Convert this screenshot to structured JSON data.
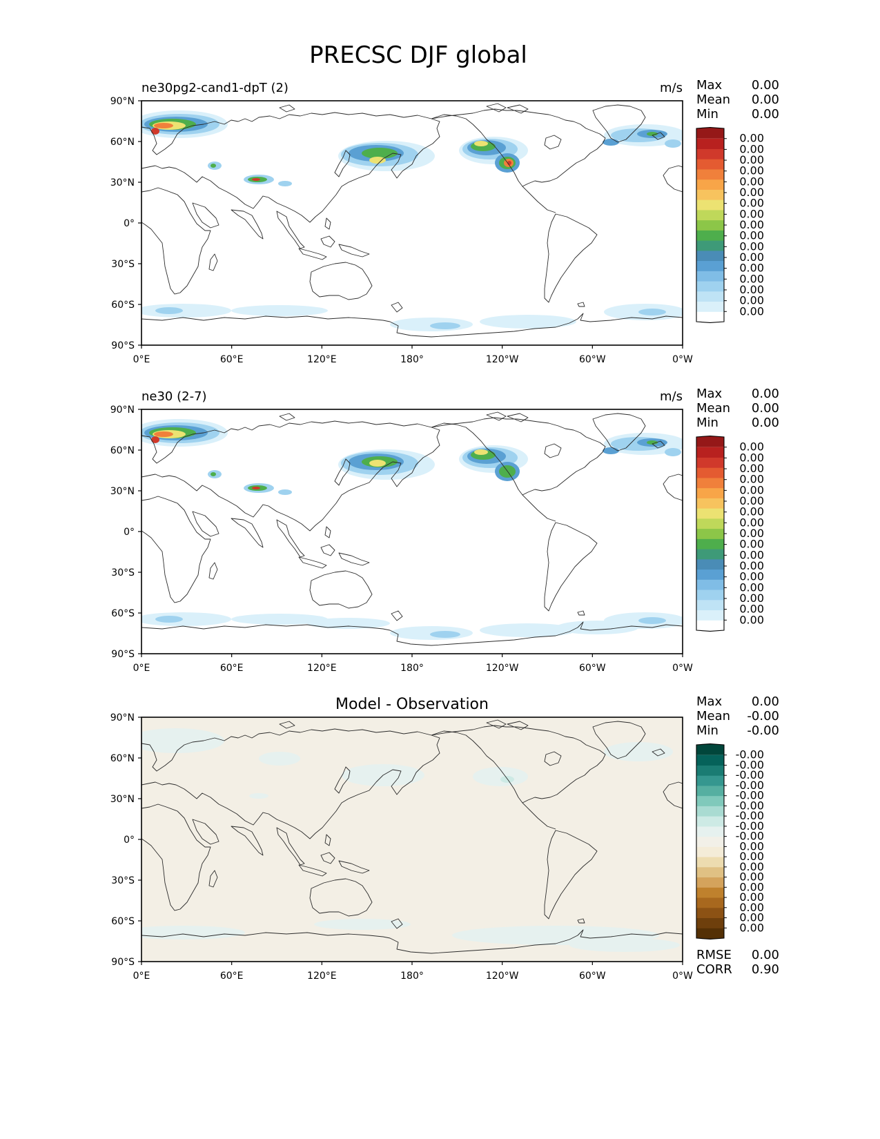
{
  "figure": {
    "title": "PRECSC DJF global"
  },
  "axes": {
    "x_ticks": [
      "0°E",
      "60°E",
      "120°E",
      "180°",
      "120°W",
      "60°W",
      "0°W"
    ],
    "y_ticks": [
      "90°N",
      "60°N",
      "30°N",
      "0°",
      "30°S",
      "60°S",
      "90°S"
    ]
  },
  "panels": [
    {
      "left_title": "ne30pg2-cand1-dpT (2)",
      "center_title": "",
      "units": "m/s",
      "stats": [
        {
          "label": "Max",
          "value": "0.00"
        },
        {
          "label": "Mean",
          "value": "0.00"
        },
        {
          "label": "Min",
          "value": "0.00"
        }
      ],
      "colorbar": {
        "colors": [
          "#ffffff",
          "#daf0fa",
          "#bfe3f5",
          "#9fd2ef",
          "#80bde6",
          "#5aa0d3",
          "#4a8cb6",
          "#3e9a78",
          "#4eae4c",
          "#8cc648",
          "#bfd85a",
          "#ece272",
          "#f7c35e",
          "#f8a548",
          "#f0803b",
          "#e45b31",
          "#d0392b",
          "#b8211f",
          "#951818"
        ],
        "labels": [
          "0.00",
          "0.00",
          "0.00",
          "0.00",
          "0.00",
          "0.00",
          "0.00",
          "0.00",
          "0.00",
          "0.00",
          "0.00",
          "0.00",
          "0.00",
          "0.00",
          "0.00",
          "0.00",
          "0.00"
        ]
      }
    },
    {
      "left_title": "ne30 (2-7)",
      "center_title": "",
      "units": "m/s",
      "stats": [
        {
          "label": "Max",
          "value": "0.00"
        },
        {
          "label": "Mean",
          "value": "0.00"
        },
        {
          "label": "Min",
          "value": "0.00"
        }
      ],
      "colorbar": {
        "colors": [
          "#ffffff",
          "#daf0fa",
          "#bfe3f5",
          "#9fd2ef",
          "#80bde6",
          "#5aa0d3",
          "#4a8cb6",
          "#3e9a78",
          "#4eae4c",
          "#8cc648",
          "#bfd85a",
          "#ece272",
          "#f7c35e",
          "#f8a548",
          "#f0803b",
          "#e45b31",
          "#d0392b",
          "#b8211f",
          "#951818"
        ],
        "labels": [
          "0.00",
          "0.00",
          "0.00",
          "0.00",
          "0.00",
          "0.00",
          "0.00",
          "0.00",
          "0.00",
          "0.00",
          "0.00",
          "0.00",
          "0.00",
          "0.00",
          "0.00",
          "0.00",
          "0.00"
        ]
      }
    },
    {
      "left_title": "",
      "center_title": "Model - Observation",
      "units": "",
      "stats": [
        {
          "label": "Max",
          "value": "0.00"
        },
        {
          "label": "Mean",
          "value": "-0.00"
        },
        {
          "label": "Min",
          "value": "-0.00"
        }
      ],
      "bottom_stats": [
        {
          "label": "RMSE",
          "value": "0.00"
        },
        {
          "label": "CORR",
          "value": "0.90"
        }
      ],
      "colorbar": {
        "colors": [
          "#543005",
          "#6e3f0c",
          "#8c5214",
          "#a8681e",
          "#bf812d",
          "#d4a35c",
          "#e0c184",
          "#eddcb0",
          "#f4ecd8",
          "#f2f0e8",
          "#e6f1ef",
          "#cdeae5",
          "#a9dbd2",
          "#80c9bb",
          "#56afa1",
          "#35978f",
          "#1a7c73",
          "#05625a",
          "#01463b"
        ],
        "labels": [
          "0.00",
          "0.00",
          "0.00",
          "0.00",
          "0.00",
          "0.00",
          "0.00",
          "0.00",
          "0.00",
          "-0.00",
          "-0.00",
          "-0.00",
          "-0.00",
          "-0.00",
          "-0.00",
          "-0.00",
          "-0.00",
          "-0.00"
        ]
      }
    }
  ]
}
